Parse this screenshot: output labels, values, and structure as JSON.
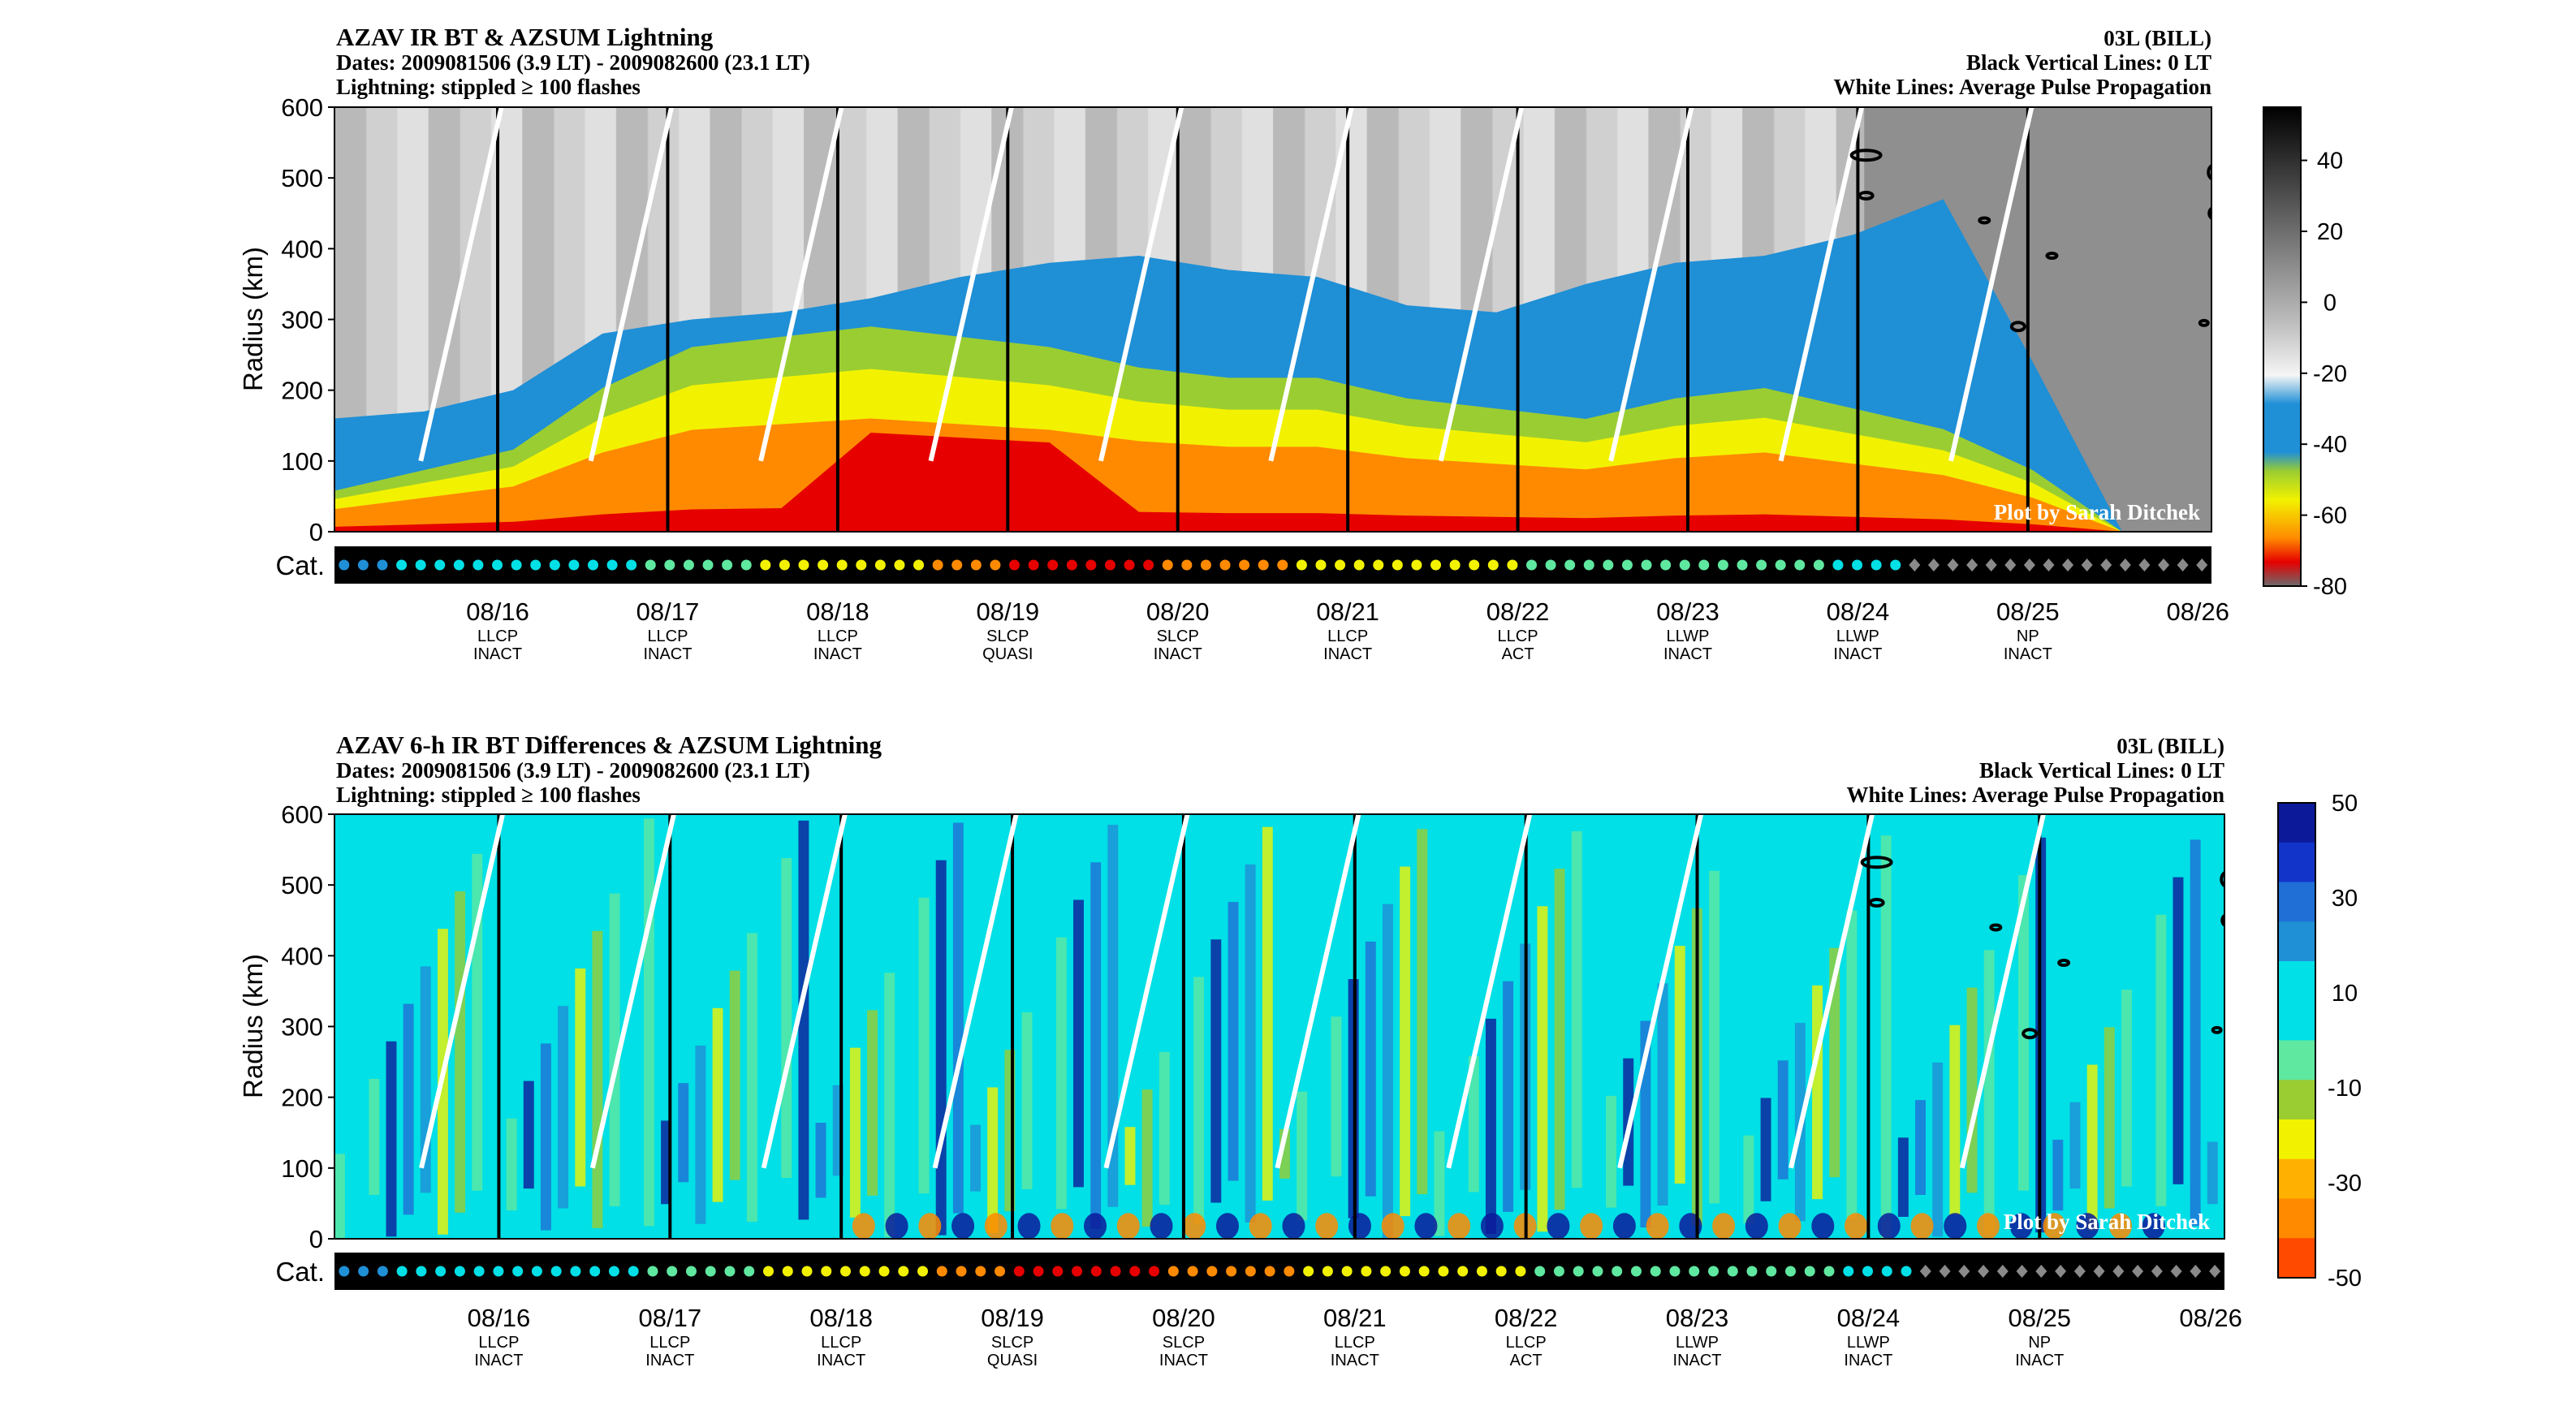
{
  "colors": {
    "black": "#000000",
    "white": "#ffffff",
    "blue": "#1f8fd6",
    "teal": "#00e0e6",
    "green": "#5fe8a0",
    "yellow": "#f2f200",
    "orange": "#ff8a00",
    "red": "#e60000",
    "darkblue": "#0c1a9a",
    "grey": "#8a8a8a",
    "lightgrey": "#d9d9d9"
  },
  "top": {
    "title": "AZAV IR BT & AZSUM Lightning",
    "dates": "Dates: 2009081506 (3.9 LT) - 2009082600 (23.1 LT)",
    "lightning_note": "Lightning: stippled ≥ 100 flashes",
    "storm": "03L (BILL)",
    "vlines_note": "Black Vertical Lines: 0 LT",
    "wlines_note": "White Lines: Average Pulse Propagation",
    "credit": "Plot by Sarah Ditchek",
    "cat_label": "Cat.",
    "ylabel": "Radius (km)"
  },
  "bottom": {
    "title": "AZAV 6-h IR BT Differences & AZSUM Lightning",
    "dates": "Dates: 2009081506 (3.9 LT) - 2009082600 (23.1 LT)",
    "lightning_note": "Lightning: stippled ≥ 100 flashes",
    "storm": "03L (BILL)",
    "vlines_note": "Black Vertical Lines: 0 LT",
    "wlines_note": "White Lines: Average Pulse Propagation",
    "credit": "Plot by Sarah Ditchek",
    "cat_label": "Cat.",
    "ylabel": "Radius (km)"
  },
  "chart_data": [
    {
      "type": "heatmap",
      "title": "AZAV IR BT & AZSUM Lightning",
      "ylabel": "Radius (km)",
      "ylim": [
        0,
        600
      ],
      "yticks": [
        "0",
        "100",
        "200",
        "300",
        "400",
        "500",
        "600"
      ],
      "xticks": [
        "08/16",
        "08/17",
        "08/18",
        "08/19",
        "08/20",
        "08/21",
        "08/22",
        "08/23",
        "08/24",
        "08/25",
        "08/26"
      ],
      "xsub1": [
        "LLCP",
        "LLCP",
        "LLCP",
        "SLCP",
        "SLCP",
        "LLCP",
        "LLCP",
        "LLWP",
        "LLWP",
        "NP"
      ],
      "xsub2": [
        "INACT",
        "INACT",
        "INACT",
        "QUASI",
        "INACT",
        "INACT",
        "ACT",
        "INACT",
        "INACT",
        "INACT"
      ],
      "colorbar_ticks": [
        "40",
        "20",
        "0",
        "-20",
        "-40",
        "-60",
        "-80"
      ],
      "colorbar_range": [
        -80,
        55
      ],
      "cloud_top_radius_km": [
        160,
        170,
        200,
        280,
        300,
        310,
        330,
        360,
        380,
        390,
        370,
        360,
        320,
        310,
        350,
        380,
        390,
        420,
        470,
        240,
        0,
        0
      ],
      "deep_core_radius_km": [
        40,
        60,
        80,
        140,
        180,
        190,
        200,
        190,
        180,
        160,
        150,
        150,
        130,
        120,
        110,
        130,
        140,
        120,
        100,
        60,
        0,
        0
      ]
    },
    {
      "type": "heatmap",
      "title": "AZAV 6-h IR BT Differences & AZSUM Lightning",
      "ylabel": "Radius (km)",
      "ylim": [
        0,
        600
      ],
      "yticks": [
        "0",
        "100",
        "200",
        "300",
        "400",
        "500",
        "600"
      ],
      "xticks": [
        "08/16",
        "08/17",
        "08/18",
        "08/19",
        "08/20",
        "08/21",
        "08/22",
        "08/23",
        "08/24",
        "08/25",
        "08/26"
      ],
      "xsub1": [
        "LLCP",
        "LLCP",
        "LLCP",
        "SLCP",
        "SLCP",
        "LLCP",
        "LLCP",
        "LLWP",
        "LLWP",
        "NP"
      ],
      "xsub2": [
        "INACT",
        "INACT",
        "INACT",
        "QUASI",
        "INACT",
        "INACT",
        "ACT",
        "INACT",
        "INACT",
        "INACT"
      ],
      "colorbar_ticks": [
        "50",
        "30",
        "10",
        "-10",
        "-30",
        "-50"
      ],
      "colorbar_range": [
        -50,
        50
      ]
    }
  ],
  "category_dots": [
    "blue",
    "blue",
    "blue",
    "teal",
    "teal",
    "teal",
    "teal",
    "teal",
    "teal",
    "teal",
    "teal",
    "teal",
    "teal",
    "teal",
    "teal",
    "teal",
    "green",
    "green",
    "green",
    "green",
    "green",
    "green",
    "yellow",
    "yellow",
    "yellow",
    "yellow",
    "yellow",
    "yellow",
    "yellow",
    "yellow",
    "yellow",
    "orange",
    "orange",
    "orange",
    "orange",
    "red",
    "red",
    "red",
    "red",
    "red",
    "red",
    "red",
    "red",
    "orange",
    "orange",
    "orange",
    "orange",
    "orange",
    "orange",
    "orange",
    "yellow",
    "yellow",
    "yellow",
    "yellow",
    "yellow",
    "yellow",
    "yellow",
    "yellow",
    "yellow",
    "yellow",
    "yellow",
    "yellow",
    "green",
    "green",
    "green",
    "green",
    "green",
    "green",
    "green",
    "green",
    "green",
    "green",
    "green",
    "green",
    "green",
    "green",
    "green",
    "green",
    "teal",
    "teal",
    "teal",
    "teal",
    "grey",
    "grey",
    "grey",
    "grey",
    "grey",
    "grey",
    "grey",
    "grey",
    "grey",
    "grey",
    "grey",
    "grey",
    "grey",
    "grey",
    "grey",
    "grey"
  ]
}
